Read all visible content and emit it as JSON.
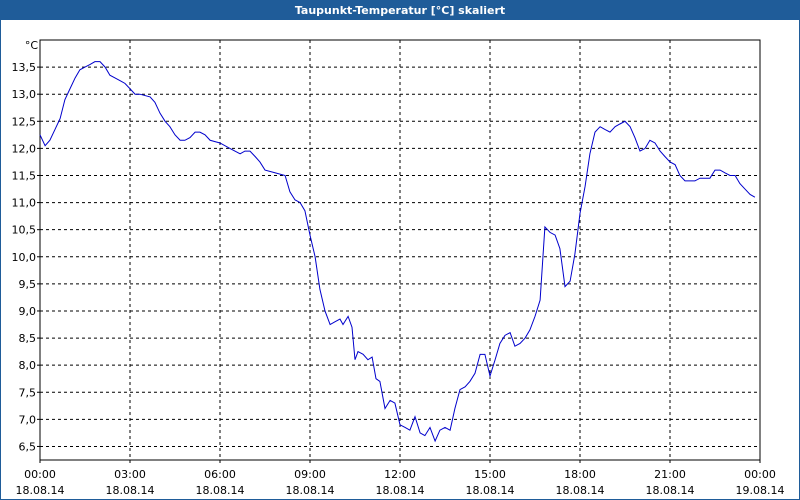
{
  "window_title": "Taupunkt-Temperatur [°C] skaliert",
  "chart_data": {
    "type": "line",
    "y_unit": "°C",
    "x": [
      0,
      0.17,
      0.33,
      0.5,
      0.67,
      0.83,
      1,
      1.17,
      1.33,
      1.5,
      1.67,
      1.83,
      2,
      2.17,
      2.33,
      2.5,
      2.67,
      2.83,
      3,
      3.17,
      3.33,
      3.67,
      3.83,
      4,
      4.17,
      4.33,
      4.5,
      4.67,
      4.83,
      5,
      5.17,
      5.33,
      5.5,
      5.67,
      6,
      6.33,
      6.67,
      6.83,
      7,
      7.17,
      7.33,
      7.5,
      7.83,
      8.17,
      8.33,
      8.5,
      8.67,
      8.83,
      9,
      9.17,
      9.33,
      9.5,
      9.67,
      9.83,
      10,
      10.1,
      10.27,
      10.4,
      10.5,
      10.6,
      10.77,
      10.93,
      11.07,
      11.2,
      11.33,
      11.5,
      11.67,
      11.83,
      12,
      12.17,
      12.33,
      12.5,
      12.67,
      12.83,
      13,
      13.17,
      13.33,
      13.5,
      13.67,
      13.83,
      14,
      14.17,
      14.33,
      14.5,
      14.67,
      14.83,
      15,
      15.17,
      15.33,
      15.5,
      15.67,
      15.83,
      16,
      16.17,
      16.33,
      16.5,
      16.67,
      16.83,
      17,
      17.17,
      17.33,
      17.5,
      17.67,
      17.83,
      18,
      18.17,
      18.33,
      18.5,
      18.67,
      18.83,
      19,
      19.17,
      19.33,
      19.5,
      19.67,
      19.83,
      20,
      20.17,
      20.33,
      20.5,
      20.67,
      20.83,
      21,
      21.17,
      21.33,
      21.5,
      21.83,
      22,
      22.33,
      22.5,
      22.67,
      22.83,
      23,
      23.17,
      23.33,
      23.5,
      23.67,
      23.83
    ],
    "series": [
      {
        "color": "#0000cc",
        "values": [
          12.25,
          12.05,
          12.15,
          12.35,
          12.55,
          12.9,
          13.1,
          13.3,
          13.45,
          13.5,
          13.55,
          13.6,
          13.6,
          13.5,
          13.35,
          13.3,
          13.25,
          13.2,
          13.1,
          13.0,
          13.0,
          12.95,
          12.85,
          12.65,
          12.5,
          12.4,
          12.25,
          12.15,
          12.15,
          12.2,
          12.3,
          12.3,
          12.25,
          12.15,
          12.1,
          12.0,
          11.9,
          11.95,
          11.95,
          11.85,
          11.75,
          11.6,
          11.55,
          11.5,
          11.2,
          11.05,
          11.0,
          10.85,
          10.4,
          10.0,
          9.4,
          9.0,
          8.75,
          8.8,
          8.85,
          8.75,
          8.9,
          8.7,
          8.1,
          8.25,
          8.2,
          8.1,
          8.15,
          7.75,
          7.7,
          7.2,
          7.35,
          7.3,
          6.9,
          6.85,
          6.8,
          7.05,
          6.75,
          6.7,
          6.85,
          6.6,
          6.8,
          6.85,
          6.8,
          7.2,
          7.55,
          7.6,
          7.7,
          7.85,
          8.2,
          8.2,
          7.8,
          8.1,
          8.4,
          8.55,
          8.6,
          8.35,
          8.4,
          8.5,
          8.65,
          8.9,
          9.2,
          10.55,
          10.45,
          10.4,
          10.15,
          9.45,
          9.55,
          10.05,
          10.8,
          11.3,
          11.9,
          12.3,
          12.4,
          12.35,
          12.3,
          12.4,
          12.45,
          12.5,
          12.4,
          12.2,
          11.95,
          12.0,
          12.15,
          12.1,
          11.95,
          11.85,
          11.75,
          11.7,
          11.5,
          11.4,
          11.4,
          11.45,
          11.45,
          11.6,
          11.6,
          11.55,
          11.5,
          11.5,
          11.35,
          11.25,
          11.15,
          11.1
        ]
      }
    ],
    "xlim": [
      0,
      24
    ],
    "xticks": [
      {
        "value": 0,
        "label": "00:00 18.08.14"
      },
      {
        "value": 3,
        "label": "03:00 18.08.14"
      },
      {
        "value": 6,
        "label": "06:00 18.08.14"
      },
      {
        "value": 9,
        "label": "09:00 18.08.14"
      },
      {
        "value": 12,
        "label": "12:00 18.08.14"
      },
      {
        "value": 15,
        "label": "15:00 18.08.14"
      },
      {
        "value": 18,
        "label": "18:00 18.08.14"
      },
      {
        "value": 21,
        "label": "21:00 18.08.14"
      },
      {
        "value": 24,
        "label": "00:00 19.08.14"
      }
    ],
    "ylim": [
      6.25,
      14.0
    ],
    "yticks": [
      {
        "value": 6.5,
        "label": "6,5"
      },
      {
        "value": 7,
        "label": "7,0"
      },
      {
        "value": 7.5,
        "label": "7,5"
      },
      {
        "value": 8,
        "label": "8,0"
      },
      {
        "value": 8.5,
        "label": "8,5"
      },
      {
        "value": 9,
        "label": "9,0"
      },
      {
        "value": 9.5,
        "label": "9,5"
      },
      {
        "value": 10,
        "label": "10,0"
      },
      {
        "value": 10.5,
        "label": "10,5"
      },
      {
        "value": 11,
        "label": "11,0"
      },
      {
        "value": 11.5,
        "label": "11,5"
      },
      {
        "value": 12,
        "label": "12,0"
      },
      {
        "value": 12.5,
        "label": "12,5"
      },
      {
        "value": 13,
        "label": "13,0"
      },
      {
        "value": 13.5,
        "label": "13,5"
      }
    ],
    "grid": true
  }
}
